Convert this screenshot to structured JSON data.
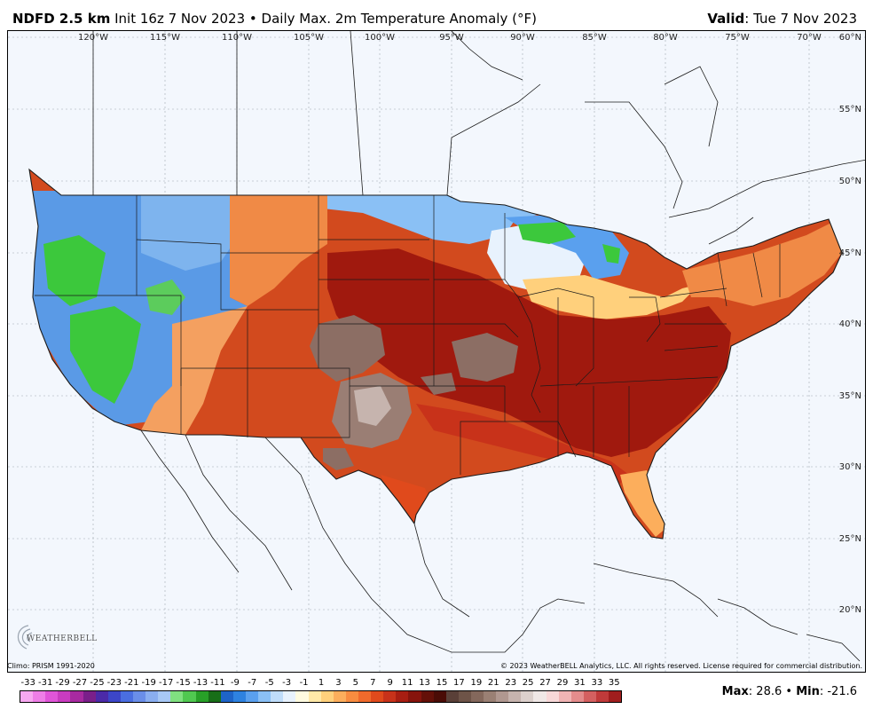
{
  "header": {
    "model": "NDFD 2.5 km",
    "init": "Init 16z 7 Nov 2023",
    "separator": "•",
    "product": "Daily Max. 2m Temperature Anomaly (°F)",
    "valid_label": "Valid",
    "valid_value": ": Tue 7 Nov 2023"
  },
  "map": {
    "lon_labels": [
      "120°W",
      "115°W",
      "110°W",
      "105°W",
      "100°W",
      "95°W",
      "90°W",
      "85°W",
      "80°W",
      "75°W",
      "70°W"
    ],
    "lat_labels": [
      "60°N",
      "55°N",
      "50°N",
      "45°N",
      "40°N",
      "35°N",
      "30°N",
      "25°N",
      "20°N"
    ],
    "colors": {
      "ocean": "#f3f7fd",
      "land_outside": "#f7f9fc",
      "blue_cool": "#5a9ae6",
      "green_cool": "#3cc83c",
      "orange_warm": "#f08a46",
      "red_warm": "#d24a1e",
      "darkred_warm": "#a0190e",
      "brown_extreme": "#8c6e64"
    }
  },
  "footer": {
    "climo": "Climo: PRISM 1991-2020",
    "copyright": "© 2023 WeatherBELL Analytics, LLC. All rights reserved. License required for commercial distribution.",
    "logo_text": "WEATHERBELL"
  },
  "colorbar": {
    "tick_labels": [
      "-33",
      "-31",
      "-29",
      "-27",
      "-25",
      "-23",
      "-21",
      "-19",
      "-17",
      "-15",
      "-13",
      "-11",
      "-9",
      "-7",
      "-5",
      "-3",
      "-1",
      "1",
      "3",
      "5",
      "7",
      "9",
      "11",
      "13",
      "15",
      "17",
      "19",
      "21",
      "23",
      "25",
      "27",
      "29",
      "31",
      "33",
      "35"
    ],
    "colors": [
      "#f7a8f0",
      "#ee7ee6",
      "#e055d8",
      "#c93cc0",
      "#a82aa0",
      "#7a1f8a",
      "#4b2aa8",
      "#3c46c8",
      "#4a6ee0",
      "#6a8ee8",
      "#8aaef0",
      "#a8c8f5",
      "#80e080",
      "#50c850",
      "#28a028",
      "#186e18",
      "#1e64c8",
      "#2e82e0",
      "#5aa0ee",
      "#8ac0f5",
      "#c0ddfa",
      "#e8f2fd",
      "#fffbe0",
      "#ffe9a8",
      "#ffd07c",
      "#fcae5c",
      "#f88c40",
      "#f06a2c",
      "#e04a1c",
      "#c8321a",
      "#a81e12",
      "#86140c",
      "#641008",
      "#4a0c06",
      "#5a4038",
      "#6e5448",
      "#84685c",
      "#9a8074",
      "#b09890",
      "#c6b4ae",
      "#dcd0cc",
      "#f0e8e6",
      "#f8d8d8",
      "#f0b4b4",
      "#e48c8c",
      "#d46060",
      "#c03a3a",
      "#a01e1e"
    ],
    "max_label": "Max",
    "max_value": ": 28.6",
    "min_sep": " • ",
    "min_label": "Min",
    "min_value": ": -21.6"
  }
}
